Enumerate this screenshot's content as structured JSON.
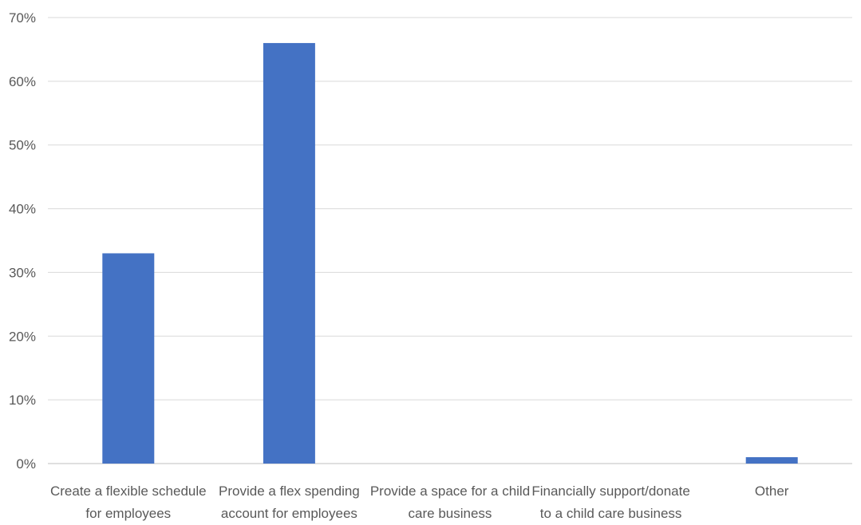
{
  "chart_data": {
    "type": "bar",
    "categories": [
      [
        "Create a flexible schedule",
        "for employees"
      ],
      [
        "Provide a flex spending",
        "account for employees"
      ],
      [
        "Provide a space for a child",
        "care business"
      ],
      [
        "Financially support/donate",
        "to a child care business"
      ],
      [
        "Other"
      ]
    ],
    "values": [
      33,
      66,
      0,
      0,
      1
    ],
    "ylim": [
      0,
      70
    ],
    "yticks": [
      "0%",
      "10%",
      "20%",
      "30%",
      "40%",
      "50%",
      "60%",
      "70%"
    ],
    "grid": true,
    "legend": "none",
    "title": "",
    "xlabel": "",
    "ylabel": "",
    "bar_color": "#4472c4"
  }
}
